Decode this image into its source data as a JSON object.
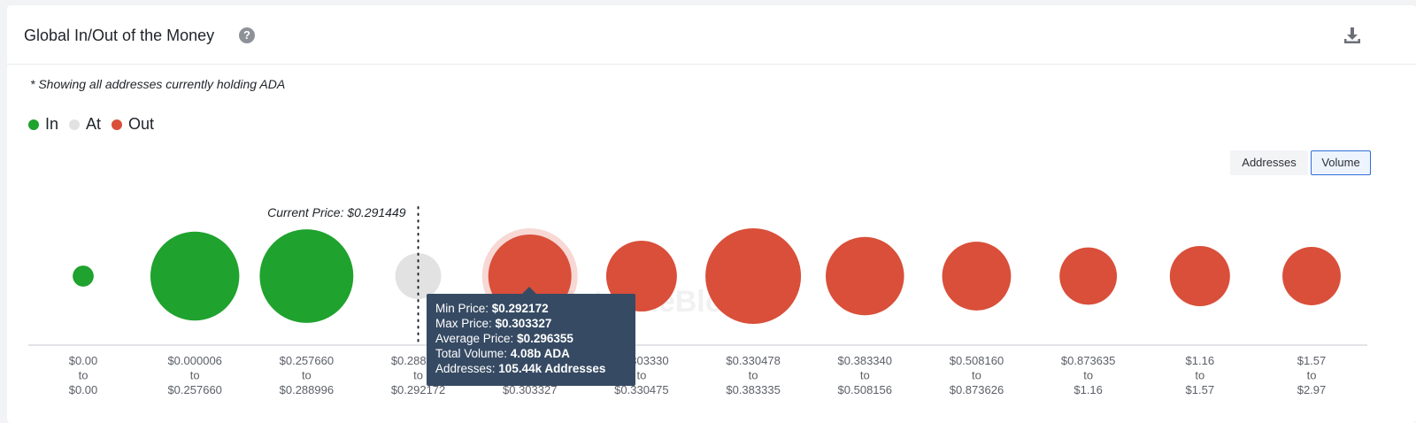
{
  "header": {
    "title": "Global In/Out of the Money",
    "help_icon": "question-circle-icon",
    "download_icon": "download-icon"
  },
  "note": "* Showing all addresses currently holding ADA",
  "legend": [
    {
      "label": "In",
      "color": "#1fa22e"
    },
    {
      "label": "At",
      "color": "#e2e2e2"
    },
    {
      "label": "Out",
      "color": "#d94f3a"
    }
  ],
  "toggles": {
    "addresses": "Addresses",
    "volume": "Volume",
    "selected": "Volume"
  },
  "current_price_label": "Current Price: $0.291449",
  "watermark": "IntoTheBlock",
  "tooltip": {
    "min_price_label": "Min Price: ",
    "min_price": "$0.292172",
    "max_price_label": "Max Price: ",
    "max_price": "$0.303327",
    "avg_price_label": "Average Price: ",
    "avg_price": "$0.296355",
    "total_volume_label": "Total Volume: ",
    "total_volume": "4.08b ADA",
    "addresses_label": "Addresses: ",
    "addresses": "105.44k Addresses"
  },
  "chart_data": {
    "type": "scatter",
    "measure": "Volume",
    "current_price": 0.291449,
    "buckets": [
      {
        "from": "$0.00",
        "to": "$0.00",
        "status": "In",
        "relative_size": 0.22
      },
      {
        "from": "$0.000006",
        "to": "$0.257660",
        "status": "In",
        "relative_size": 0.93
      },
      {
        "from": "$0.257660",
        "to": "$0.288996",
        "status": "In",
        "relative_size": 0.98
      },
      {
        "from": "$0.288996",
        "to": "$0.292172",
        "status": "At",
        "relative_size": 0.48
      },
      {
        "from": "$0.292172",
        "to": "$0.303327",
        "status": "Out",
        "relative_size": 0.87
      },
      {
        "from": "$0.303330",
        "to": "$0.330475",
        "status": "Out",
        "relative_size": 0.74
      },
      {
        "from": "$0.330478",
        "to": "$0.383335",
        "status": "Out",
        "relative_size": 1.0
      },
      {
        "from": "$0.383340",
        "to": "$0.508156",
        "status": "Out",
        "relative_size": 0.82
      },
      {
        "from": "$0.508160",
        "to": "$0.873626",
        "status": "Out",
        "relative_size": 0.72
      },
      {
        "from": "$0.873635",
        "to": "$1.16",
        "status": "Out",
        "relative_size": 0.6
      },
      {
        "from": "$1.16",
        "to": "$1.57",
        "status": "Out",
        "relative_size": 0.63
      },
      {
        "from": "$1.57",
        "to": "$2.97",
        "status": "Out",
        "relative_size": 0.61
      }
    ],
    "to_word": "to",
    "highlighted_index": 4
  }
}
